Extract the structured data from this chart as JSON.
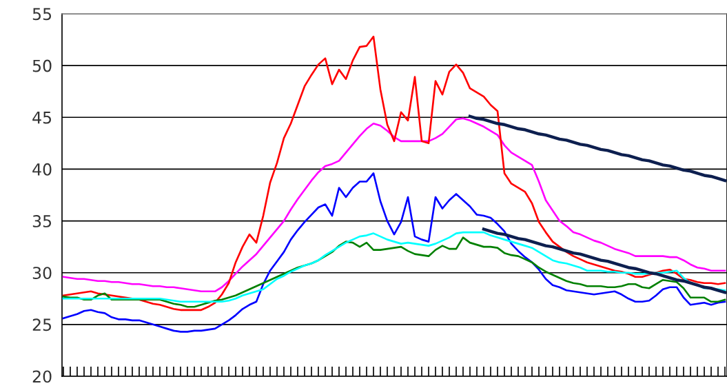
{
  "chart_data": {
    "type": "line",
    "tick_labels": "y",
    "grid": "y",
    "ylim": [
      20,
      55
    ],
    "yticks": [
      20,
      25,
      30,
      35,
      40,
      45,
      50,
      55
    ],
    "categories": [
      null,
      null,
      null,
      null,
      null,
      null,
      null,
      null,
      null,
      null,
      null,
      null,
      null,
      null,
      null,
      null,
      null,
      null,
      null,
      null,
      null,
      null,
      null,
      null,
      null,
      null,
      null,
      null,
      null,
      null,
      null,
      null,
      null,
      null,
      null,
      null,
      null,
      null,
      null,
      null,
      null,
      null,
      null,
      null,
      null,
      null,
      null,
      null,
      null,
      null,
      null,
      null,
      null,
      null,
      null,
      null,
      null,
      null,
      null,
      null,
      null,
      null,
      null,
      null,
      null,
      null,
      null,
      null,
      null,
      null,
      null,
      null,
      null,
      null,
      null,
      null,
      null,
      null,
      null,
      null,
      null,
      null,
      null,
      null,
      null,
      null,
      null,
      null,
      null,
      null,
      null,
      null,
      null,
      null,
      null,
      null,
      null
    ],
    "series": [
      {
        "color": "#ff00ff",
        "values": [
          29.6,
          29.5,
          29.4,
          29.4,
          29.3,
          29.2,
          29.2,
          29.1,
          29.1,
          29.0,
          28.9,
          28.9,
          28.8,
          28.7,
          28.7,
          28.6,
          28.6,
          28.5,
          28.4,
          28.3,
          28.2,
          28.2,
          28.2,
          28.6,
          29.2,
          29.9,
          30.6,
          31.2,
          31.8,
          32.6,
          33.4,
          34.2,
          35.0,
          36.1,
          37.1,
          38.0,
          38.9,
          39.7,
          40.3,
          40.5,
          40.8,
          41.6,
          42.4,
          43.2,
          43.9,
          44.4,
          44.2,
          43.7,
          43.1,
          42.7,
          42.7,
          42.7,
          42.7,
          42.7,
          43.0,
          43.4,
          44.1,
          44.8,
          44.9,
          44.7,
          44.4,
          44.1,
          43.7,
          43.3,
          42.3,
          41.6,
          41.2,
          40.8,
          40.4,
          38.8,
          37.0,
          36.0,
          35.0,
          34.5,
          33.9,
          33.7,
          33.4,
          33.1,
          32.9,
          32.6,
          32.3,
          32.1,
          31.9,
          31.6,
          31.6,
          31.6,
          31.6,
          31.6,
          31.5,
          31.5,
          31.2,
          30.8,
          30.5,
          30.4,
          30.2,
          30.2,
          30.2
        ]
      },
      {
        "color": "#ff0000",
        "values": [
          27.8,
          27.9,
          28.0,
          28.1,
          28.2,
          28.0,
          27.9,
          27.8,
          27.7,
          27.6,
          27.5,
          27.4,
          27.2,
          27.0,
          26.9,
          26.7,
          26.5,
          26.4,
          26.4,
          26.4,
          26.4,
          26.7,
          27.1,
          27.9,
          29.0,
          31.0,
          32.5,
          33.7,
          32.9,
          35.5,
          38.7,
          40.6,
          43.0,
          44.4,
          46.2,
          48.0,
          49.1,
          50.1,
          50.7,
          48.2,
          49.6,
          48.7,
          50.5,
          51.8,
          51.9,
          52.8,
          47.7,
          44.3,
          42.7,
          45.5,
          44.7,
          48.9,
          42.7,
          42.5,
          48.5,
          47.2,
          49.4,
          50.1,
          49.3,
          47.8,
          47.4,
          47.0,
          46.2,
          45.6,
          39.6,
          38.6,
          38.2,
          37.8,
          36.7,
          34.9,
          33.9,
          33.0,
          32.5,
          32.0,
          31.6,
          31.3,
          31.0,
          30.8,
          30.6,
          30.4,
          30.2,
          30.1,
          29.9,
          29.6,
          29.6,
          29.8,
          30.0,
          30.2,
          30.3,
          29.9,
          29.4,
          29.3,
          29.1,
          29.0,
          29.0,
          28.9,
          29.0
        ]
      },
      {
        "color": "#0000ff",
        "values": [
          25.6,
          25.8,
          26.0,
          26.3,
          26.4,
          26.2,
          26.1,
          25.7,
          25.5,
          25.5,
          25.4,
          25.4,
          25.2,
          25.0,
          24.8,
          24.6,
          24.4,
          24.3,
          24.3,
          24.4,
          24.4,
          24.5,
          24.6,
          25.0,
          25.4,
          25.9,
          26.5,
          26.9,
          27.2,
          28.9,
          30.2,
          31.1,
          32.0,
          33.2,
          34.1,
          34.9,
          35.6,
          36.3,
          36.6,
          35.5,
          38.2,
          37.3,
          38.2,
          38.8,
          38.8,
          39.6,
          36.9,
          35.0,
          33.7,
          34.9,
          37.3,
          33.5,
          33.2,
          33.0,
          37.3,
          36.2,
          37.0,
          37.6,
          37.0,
          36.4,
          35.6,
          35.5,
          35.3,
          34.7,
          34.0,
          32.8,
          32.1,
          31.5,
          31.0,
          30.3,
          29.4,
          28.8,
          28.6,
          28.3,
          28.2,
          28.1,
          28.0,
          27.9,
          28.0,
          28.1,
          28.2,
          27.9,
          27.5,
          27.2,
          27.2,
          27.3,
          27.8,
          28.4,
          28.6,
          28.6,
          27.6,
          26.9,
          27.0,
          27.1,
          26.9,
          27.1,
          27.2
        ]
      },
      {
        "color": "#008000",
        "values": [
          27.7,
          27.6,
          27.6,
          27.4,
          27.4,
          27.8,
          28.0,
          27.4,
          27.4,
          27.4,
          27.4,
          27.4,
          27.4,
          27.4,
          27.4,
          27.2,
          27.0,
          26.9,
          26.7,
          26.7,
          26.9,
          27.1,
          27.3,
          27.4,
          27.6,
          27.8,
          28.1,
          28.4,
          28.7,
          29.0,
          29.3,
          29.6,
          29.9,
          30.2,
          30.5,
          30.7,
          30.9,
          31.2,
          31.6,
          32.0,
          32.6,
          33.0,
          32.9,
          32.5,
          32.9,
          32.2,
          32.2,
          32.3,
          32.4,
          32.5,
          32.1,
          31.8,
          31.7,
          31.6,
          32.2,
          32.6,
          32.3,
          32.3,
          33.4,
          32.9,
          32.7,
          32.5,
          32.5,
          32.4,
          31.9,
          31.7,
          31.6,
          31.3,
          31.0,
          30.5,
          30.1,
          29.8,
          29.5,
          29.2,
          29.0,
          28.9,
          28.7,
          28.7,
          28.7,
          28.6,
          28.6,
          28.7,
          28.9,
          28.9,
          28.6,
          28.5,
          28.9,
          29.3,
          29.2,
          29.1,
          28.5,
          27.6,
          27.6,
          27.6,
          27.2,
          27.2,
          27.4
        ]
      },
      {
        "color": "#00ffff",
        "values": [
          27.5,
          27.5,
          27.5,
          27.5,
          27.5,
          27.5,
          27.5,
          27.5,
          27.5,
          27.5,
          27.5,
          27.5,
          27.5,
          27.5,
          27.5,
          27.4,
          27.3,
          27.2,
          27.2,
          27.2,
          27.2,
          27.2,
          27.2,
          27.2,
          27.3,
          27.5,
          27.8,
          28.0,
          28.2,
          28.4,
          28.9,
          29.4,
          29.7,
          30.1,
          30.4,
          30.7,
          30.9,
          31.2,
          31.7,
          32.1,
          32.5,
          32.9,
          33.2,
          33.5,
          33.6,
          33.8,
          33.5,
          33.2,
          33.0,
          32.8,
          32.9,
          32.8,
          32.7,
          32.6,
          32.8,
          33.1,
          33.4,
          33.8,
          33.9,
          33.9,
          33.9,
          33.9,
          33.6,
          33.4,
          33.2,
          33.0,
          32.8,
          32.6,
          32.4,
          32.0,
          31.6,
          31.2,
          31.0,
          30.9,
          30.7,
          30.5,
          30.2,
          30.2,
          30.2,
          30.1,
          30.1,
          30.0,
          30.0,
          29.9,
          29.9,
          29.9,
          30.0,
          30.0,
          30.1,
          30.2,
          29.5,
          29.0,
          28.8,
          28.5,
          28.5,
          28.4,
          28.3
        ]
      },
      {
        "type": "line",
        "color": "#0d1f4f",
        "values": [
          null,
          null,
          null,
          null,
          null,
          null,
          null,
          null,
          null,
          null,
          null,
          null,
          null,
          null,
          null,
          null,
          null,
          null,
          null,
          null,
          null,
          null,
          null,
          null,
          null,
          null,
          null,
          null,
          null,
          null,
          null,
          null,
          null,
          null,
          null,
          null,
          null,
          null,
          null,
          null,
          null,
          null,
          null,
          null,
          null,
          null,
          null,
          null,
          null,
          null,
          null,
          null,
          null,
          null,
          null,
          null,
          null,
          null,
          null,
          45.1,
          44.9,
          44.8,
          44.6,
          44.4,
          44.3,
          44.1,
          43.9,
          43.8,
          43.6,
          43.4,
          43.3,
          43.1,
          42.9,
          42.8,
          42.6,
          42.4,
          42.3,
          42.1,
          41.9,
          41.8,
          41.6,
          41.4,
          41.3,
          41.1,
          40.9,
          40.8,
          40.6,
          40.4,
          40.3,
          40.1,
          39.9,
          39.8,
          39.6,
          39.4,
          39.3,
          39.1,
          38.9
        ]
      },
      {
        "type": "line",
        "color": "#0d1f4f",
        "values": [
          null,
          null,
          null,
          null,
          null,
          null,
          null,
          null,
          null,
          null,
          null,
          null,
          null,
          null,
          null,
          null,
          null,
          null,
          null,
          null,
          null,
          null,
          null,
          null,
          null,
          null,
          null,
          null,
          null,
          null,
          null,
          null,
          null,
          null,
          null,
          null,
          null,
          null,
          null,
          null,
          null,
          null,
          null,
          null,
          null,
          null,
          null,
          null,
          null,
          null,
          null,
          null,
          null,
          null,
          null,
          null,
          null,
          null,
          null,
          null,
          null,
          34.2,
          34.0,
          33.8,
          33.7,
          33.5,
          33.3,
          33.2,
          33.0,
          32.8,
          32.6,
          32.5,
          32.3,
          32.1,
          31.9,
          31.8,
          31.6,
          31.4,
          31.2,
          31.1,
          30.9,
          30.7,
          30.5,
          30.4,
          30.2,
          30.0,
          29.9,
          29.7,
          29.5,
          29.3,
          29.2,
          29.0,
          28.8,
          28.6,
          28.5,
          28.3,
          28.1
        ]
      }
    ]
  }
}
